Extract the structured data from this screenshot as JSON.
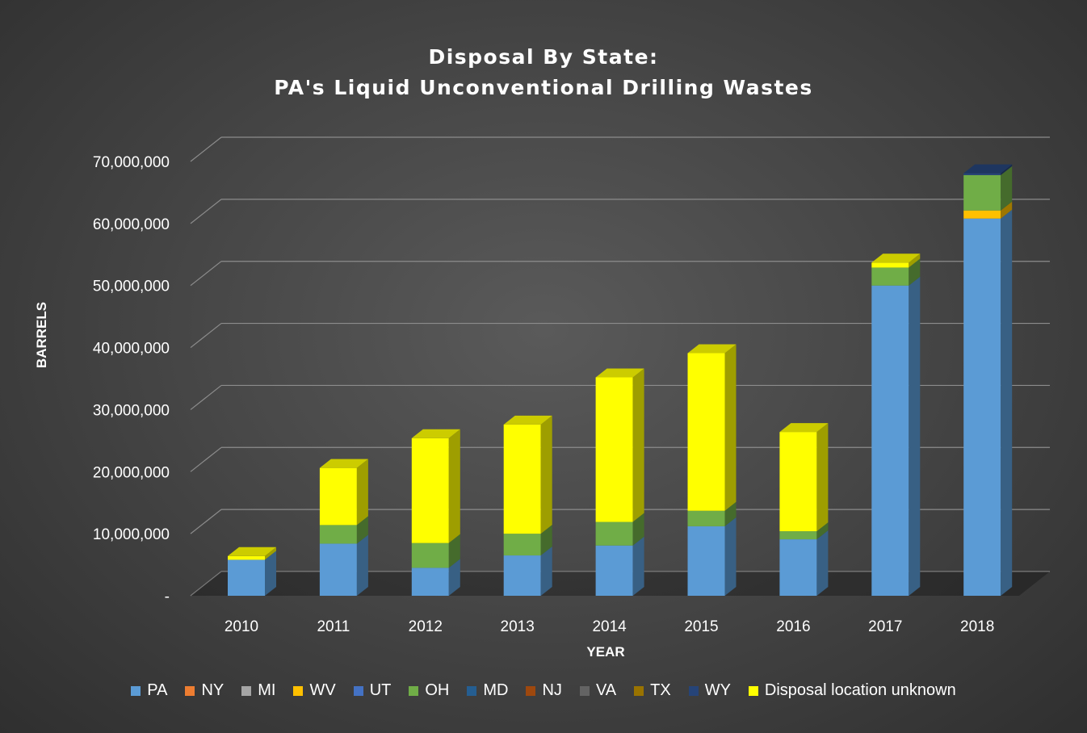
{
  "chart_data": {
    "type": "bar",
    "stacked": true,
    "title": [
      "Disposal By State:",
      "PA's Liquid Unconventional Drilling Wastes"
    ],
    "xlabel": "YEAR",
    "ylabel": "BARRELS",
    "ylim": [
      0,
      70000000
    ],
    "yticks": [
      {
        "value": 0,
        "label": "-"
      },
      {
        "value": 10000000,
        "label": "10,000,000"
      },
      {
        "value": 20000000,
        "label": "20,000,000"
      },
      {
        "value": 30000000,
        "label": "30,000,000"
      },
      {
        "value": 40000000,
        "label": "40,000,000"
      },
      {
        "value": 50000000,
        "label": "50,000,000"
      },
      {
        "value": 60000000,
        "label": "60,000,000"
      },
      {
        "value": 70000000,
        "label": "70,000,000"
      }
    ],
    "grid": true,
    "legend_position": "bottom",
    "categories": [
      "2010",
      "2011",
      "2012",
      "2013",
      "2014",
      "2015",
      "2016",
      "2017",
      "2018"
    ],
    "series": [
      {
        "name": "PA",
        "color": "#5b9bd5",
        "values": [
          5800000,
          8400000,
          4500000,
          6500000,
          8100000,
          11200000,
          9100000,
          50000000,
          60800000
        ]
      },
      {
        "name": "NY",
        "color": "#ed7d31",
        "values": [
          0,
          0,
          0,
          0,
          0,
          0,
          0,
          0,
          0
        ]
      },
      {
        "name": "MI",
        "color": "#a5a5a5",
        "values": [
          0,
          0,
          0,
          0,
          0,
          0,
          0,
          0,
          0
        ]
      },
      {
        "name": "WV",
        "color": "#ffc000",
        "values": [
          0,
          0,
          0,
          0,
          0,
          0,
          0,
          0,
          1300000
        ]
      },
      {
        "name": "UT",
        "color": "#4472c4",
        "values": [
          0,
          0,
          0,
          0,
          0,
          0,
          0,
          0,
          0
        ]
      },
      {
        "name": "OH",
        "color": "#70ad47",
        "values": [
          0,
          3000000,
          4000000,
          3500000,
          3800000,
          2500000,
          1300000,
          2900000,
          5700000
        ]
      },
      {
        "name": "MD",
        "color": "#255e91",
        "values": [
          0,
          0,
          0,
          0,
          0,
          0,
          0,
          0,
          0
        ]
      },
      {
        "name": "NJ",
        "color": "#9e480e",
        "values": [
          0,
          0,
          0,
          0,
          0,
          0,
          0,
          0,
          0
        ]
      },
      {
        "name": "VA",
        "color": "#636363",
        "values": [
          0,
          0,
          0,
          0,
          0,
          0,
          0,
          0,
          0
        ]
      },
      {
        "name": "TX",
        "color": "#997300",
        "values": [
          0,
          0,
          0,
          0,
          0,
          0,
          0,
          0,
          0
        ]
      },
      {
        "name": "WY",
        "color": "#264478",
        "values": [
          0,
          0,
          0,
          0,
          0,
          0,
          0,
          0,
          300000
        ]
      },
      {
        "name": "Disposal location unknown",
        "color": "#ffff00",
        "values": [
          600000,
          9200000,
          16900000,
          17600000,
          23300000,
          25400000,
          16000000,
          800000,
          0
        ]
      }
    ]
  }
}
